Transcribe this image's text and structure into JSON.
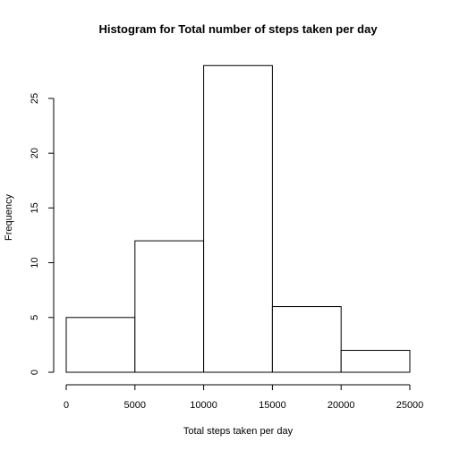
{
  "chart_data": {
    "type": "bar",
    "title": "Histogram for Total number of steps taken per day",
    "xlabel": "Total steps taken per day",
    "ylabel": "Frequency",
    "bins": [
      {
        "from": 0,
        "to": 5000,
        "count": 5
      },
      {
        "from": 5000,
        "to": 10000,
        "count": 12
      },
      {
        "from": 10000,
        "to": 15000,
        "count": 28
      },
      {
        "from": 15000,
        "to": 20000,
        "count": 6
      },
      {
        "from": 20000,
        "to": 25000,
        "count": 2
      }
    ],
    "xlim": [
      0,
      25000
    ],
    "ylim": [
      0,
      28
    ],
    "x_ticks": [
      0,
      5000,
      10000,
      15000,
      20000,
      25000
    ],
    "y_ticks": [
      0,
      5,
      10,
      15,
      20,
      25
    ],
    "grid": false,
    "bar_fill": "#ffffff",
    "bar_stroke": "#000000"
  }
}
